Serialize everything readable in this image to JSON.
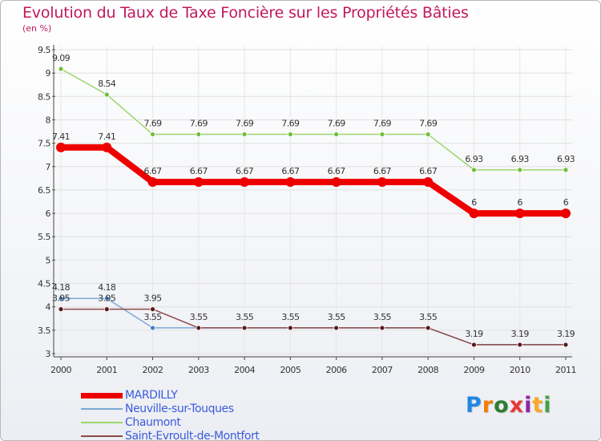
{
  "chart_data": {
    "type": "line",
    "title": "Evolution du Taux de Taxe Foncière sur les Propriétés Bâties",
    "subtitle": "(en %)",
    "xlabel": "",
    "ylabel": "",
    "categories": [
      "2000",
      "2001",
      "2002",
      "2003",
      "2004",
      "2005",
      "2006",
      "2007",
      "2008",
      "2009",
      "2010",
      "2011"
    ],
    "ylim": [
      3,
      9.5
    ],
    "yticks": [
      "3",
      "3.5",
      "4",
      "4.5",
      "5",
      "5.5",
      "6",
      "6.5",
      "7",
      "7.5",
      "8",
      "8.5",
      "9",
      "9.5"
    ],
    "grid": true,
    "legend_position": "bottom-left",
    "series": [
      {
        "name": "MARDILLY",
        "color": "#ee0000",
        "marker_color": "#ee0000",
        "values": [
          7.41,
          7.41,
          6.67,
          6.67,
          6.67,
          6.67,
          6.67,
          6.67,
          6.67,
          6,
          6,
          6
        ],
        "labels": [
          "7.41",
          "7.41",
          "6.67",
          "6.67",
          "6.67",
          "6.67",
          "6.67",
          "6.67",
          "6.67",
          "6",
          "6",
          "6"
        ]
      },
      {
        "name": "Neuville-sur-Touques",
        "color": "#7aaad6",
        "marker_color": "#3e7fc4",
        "values": [
          4.18,
          4.18,
          3.55,
          3.55,
          3.55,
          3.55,
          3.55,
          3.55,
          3.55,
          3.19,
          3.19,
          3.19
        ],
        "labels": [
          "4.18",
          "4.18",
          "3.55",
          "",
          "",
          "",
          "",
          "",
          "",
          "",
          "",
          ""
        ]
      },
      {
        "name": "Chaumont",
        "color": "#9bd66e",
        "marker_color": "#6fbf3a",
        "values": [
          9.09,
          8.54,
          7.69,
          7.69,
          7.69,
          7.69,
          7.69,
          7.69,
          7.69,
          6.93,
          6.93,
          6.93
        ],
        "labels": [
          "9.09",
          "8.54",
          "7.69",
          "7.69",
          "7.69",
          "7.69",
          "7.69",
          "7.69",
          "7.69",
          "6.93",
          "6.93",
          "6.93"
        ]
      },
      {
        "name": "Saint-Evroult-de-Montfort",
        "color": "#8b4a4a",
        "marker_color": "#5a1b1b",
        "values": [
          3.95,
          3.95,
          3.95,
          3.55,
          3.55,
          3.55,
          3.55,
          3.55,
          3.55,
          3.19,
          3.19,
          3.19
        ],
        "labels": [
          "3.95",
          "3.95",
          "3.95",
          "3.55",
          "3.55",
          "3.55",
          "3.55",
          "3.55",
          "3.55",
          "3.19",
          "3.19",
          "3.19"
        ]
      }
    ]
  },
  "legend": {
    "items": [
      {
        "label": "MARDILLY"
      },
      {
        "label": "Neuville-sur-Touques"
      },
      {
        "label": "Chaumont"
      },
      {
        "label": "Saint-Evroult-de-Montfort"
      }
    ]
  },
  "logo": {
    "text": "Proxiti",
    "letters": [
      "P",
      "r",
      "o",
      "x",
      "i",
      "t",
      "i"
    ]
  }
}
